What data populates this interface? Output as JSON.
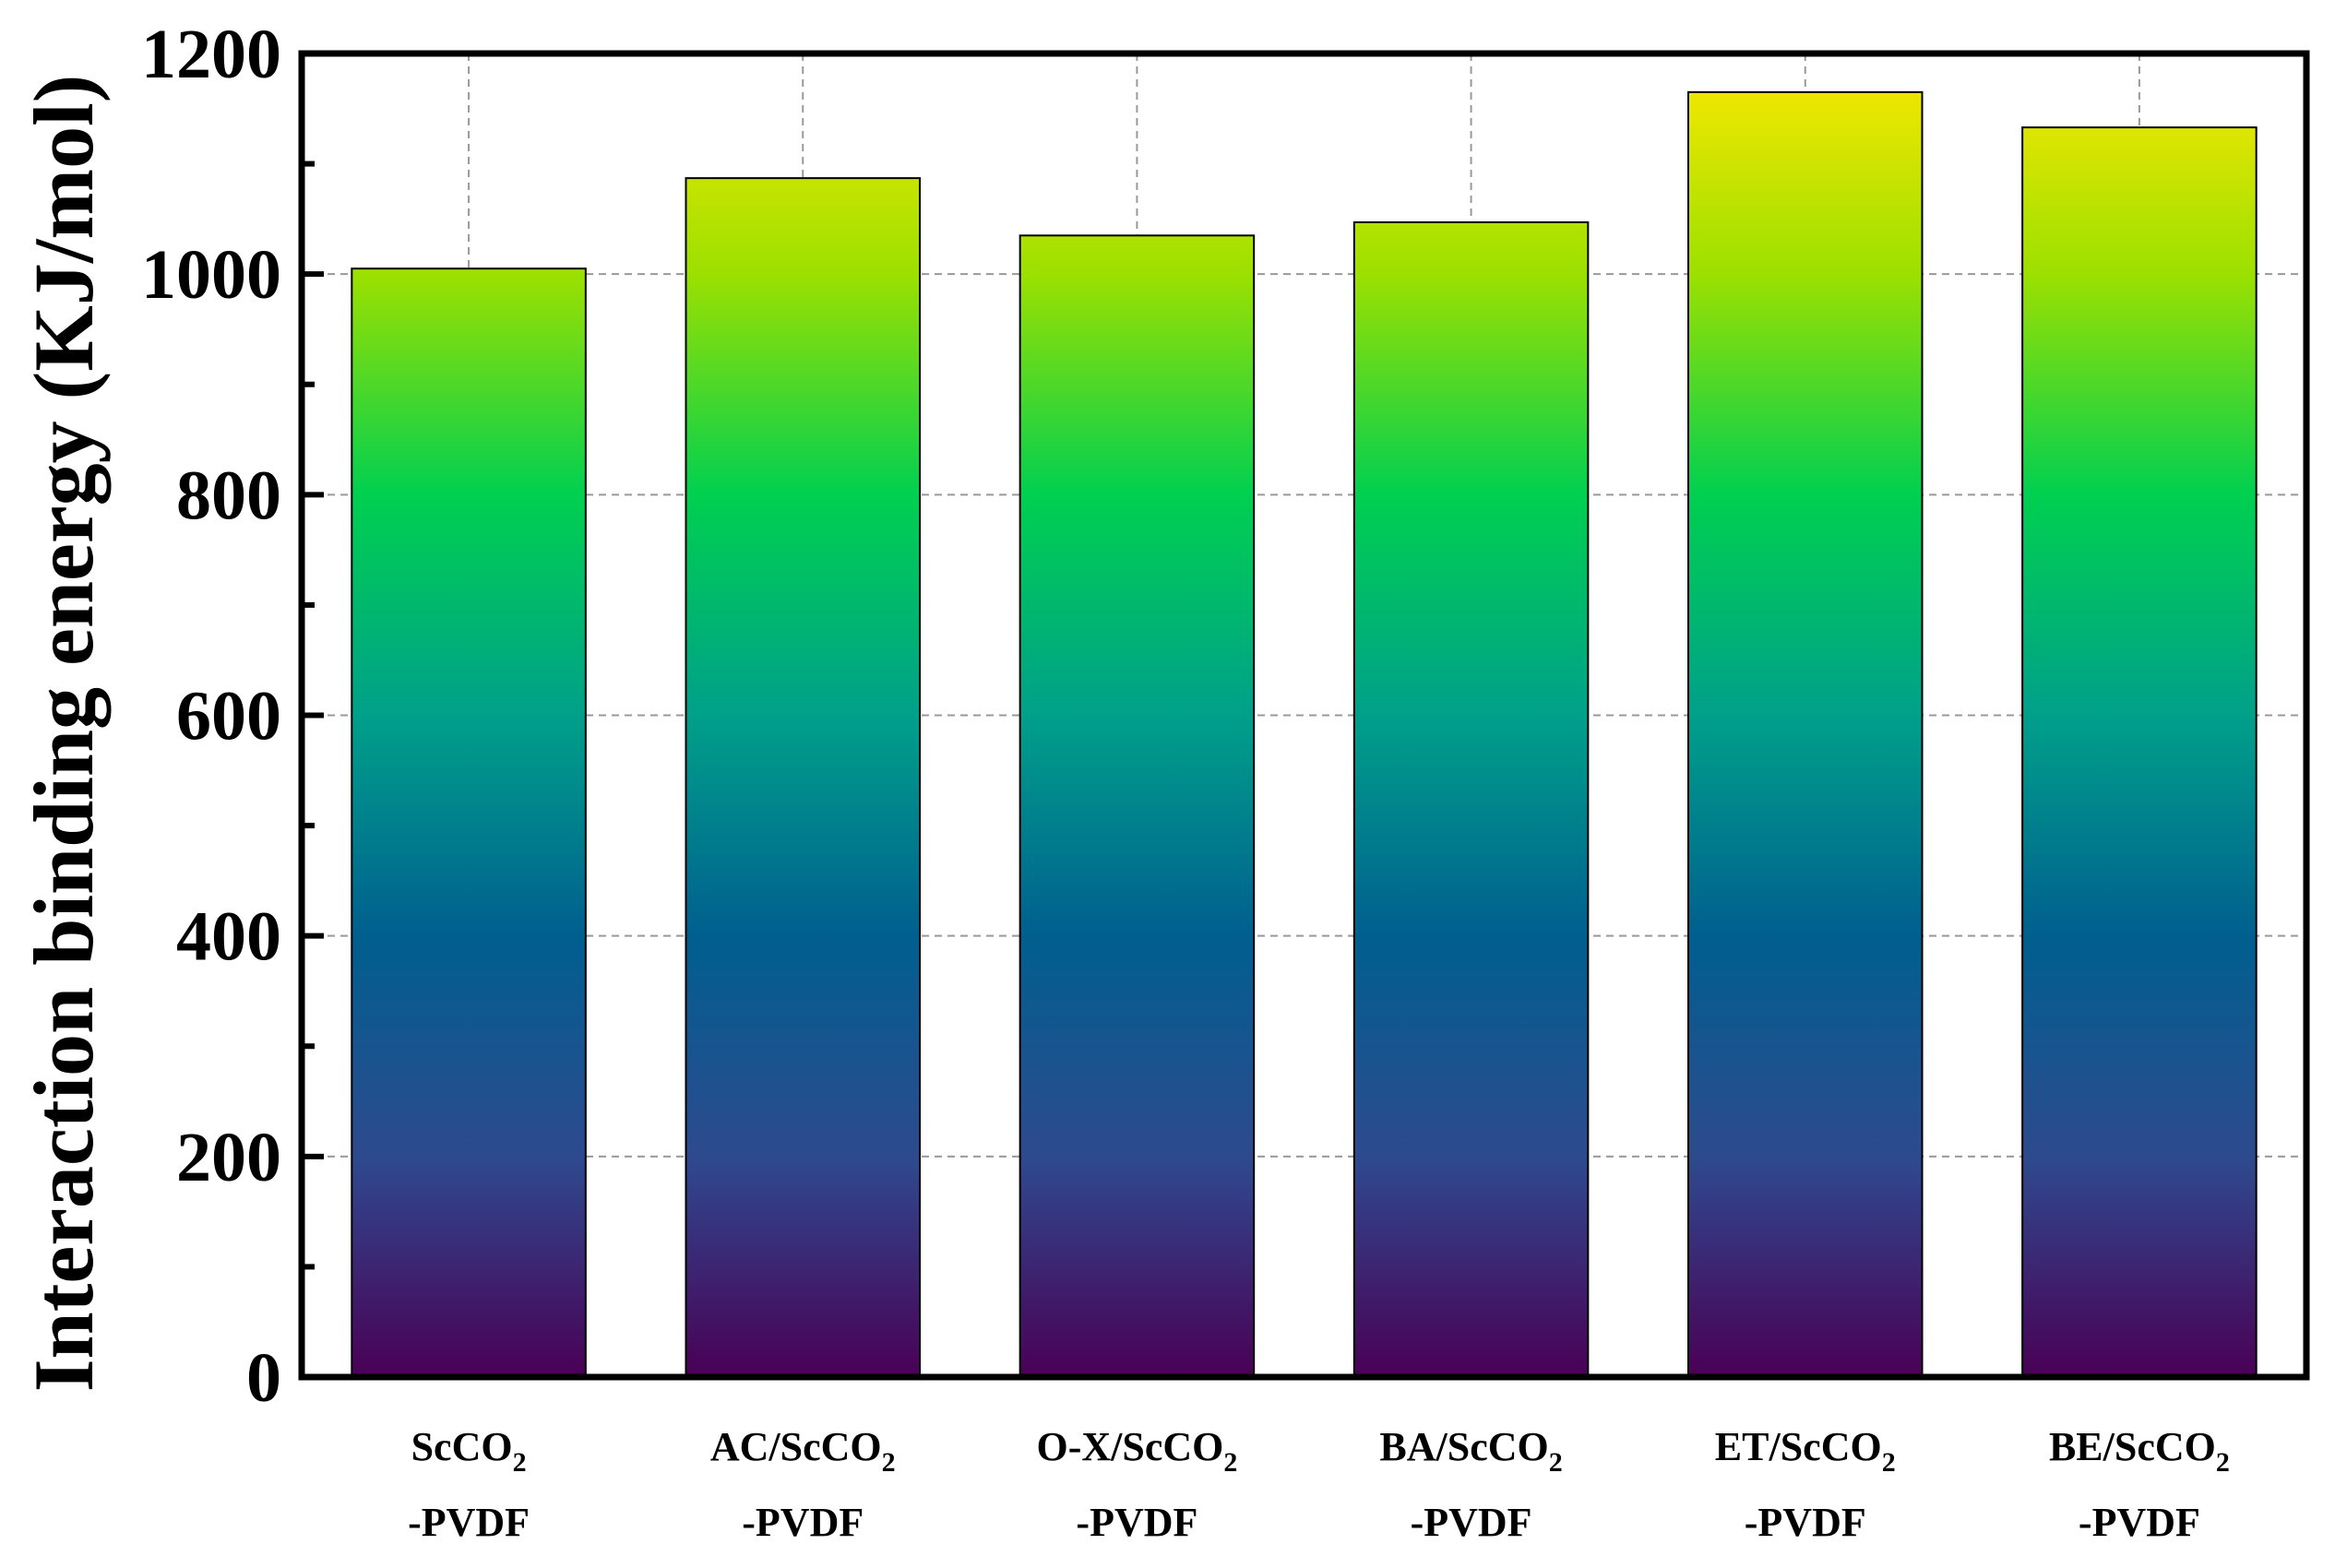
{
  "chart_data": {
    "type": "bar",
    "title": "",
    "xlabel": "",
    "ylabel": "Interaction binding energy (KJ/mol)",
    "ylim": [
      0,
      1200
    ],
    "yticks": [
      0,
      200,
      400,
      600,
      800,
      1000,
      1200
    ],
    "grid": true,
    "legend": "none",
    "categories": [
      {
        "line1": "ScCO",
        "sub": "2",
        "line2": "-PVDF"
      },
      {
        "line1": "AC/ScCO",
        "sub": "2",
        "line2": "-PVDF"
      },
      {
        "line1": "O-X/ScCO",
        "sub": "2",
        "line2": "-PVDF"
      },
      {
        "line1": "BA/ScCO",
        "sub": "2",
        "line2": "-PVDF"
      },
      {
        "line1": "ET/ScCO",
        "sub": "2",
        "line2": "-PVDF"
      },
      {
        "line1": "BE/ScCO",
        "sub": "2",
        "line2": "-PVDF"
      }
    ],
    "values": [
      1005,
      1087,
      1035,
      1047,
      1165,
      1133
    ],
    "bar_gradient": [
      "#4a0055",
      "#2e4a8f",
      "#005f8f",
      "#00a08a",
      "#00d050",
      "#9ce000",
      "#ffe800"
    ]
  }
}
